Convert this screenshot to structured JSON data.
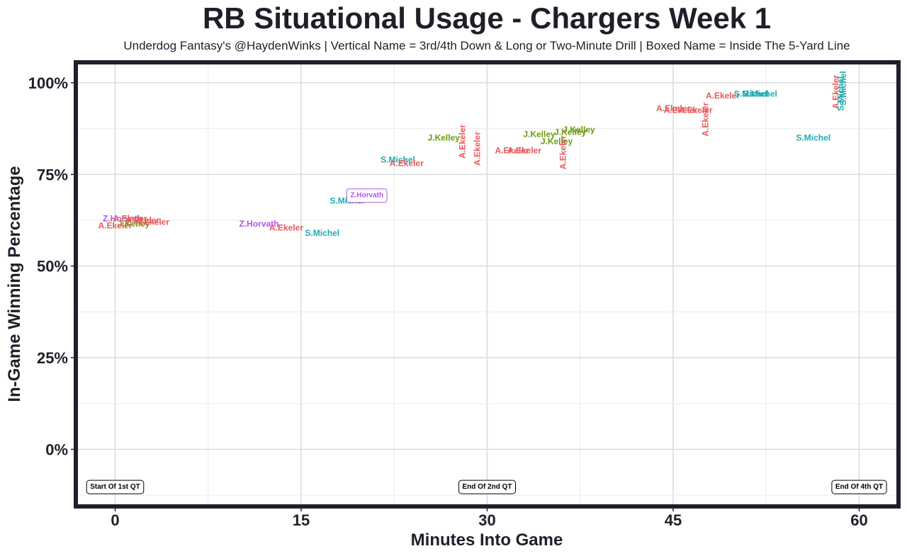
{
  "chart_data": {
    "type": "scatter",
    "title": "RB Situational Usage - Chargers Week 1",
    "subtitle": "Underdog Fantasy's @HaydenWinks | Vertical Name = 3rd/4th Down & Long or Two-Minute Drill | Boxed Name = Inside The 5-Yard Line",
    "xlabel": "Minutes Into Game",
    "ylabel": "In-Game Winning Percentage",
    "xlim": [
      -3,
      63
    ],
    "ylim": [
      -15,
      105
    ],
    "x_ticks": [
      0,
      15,
      30,
      45,
      60
    ],
    "x_tick_labels": [
      "0",
      "15",
      "30",
      "45",
      "60"
    ],
    "y_ticks": [
      0,
      25,
      50,
      75,
      100
    ],
    "y_tick_labels": [
      "0%",
      "25%",
      "50%",
      "75%",
      "100%"
    ],
    "grid": true,
    "colors": {
      "A.Ekeler": "#e8595a",
      "J.Kelley": "#6a9a0e",
      "S.Michel": "#1aabb0",
      "Z.Horvath": "#b157e8"
    },
    "annotations": [
      {
        "text": "Start Of 1st QT",
        "x": 0,
        "y": -10
      },
      {
        "text": "End Of 2nd QT",
        "x": 30,
        "y": -10
      },
      {
        "text": "End Of 4th QT",
        "x": 60,
        "y": -10
      }
    ],
    "points": [
      {
        "name": "A.Ekeler",
        "x": 0.0,
        "y": 61.0,
        "vertical": false,
        "boxed": false
      },
      {
        "name": "Z.Horvath",
        "x": 0.6,
        "y": 63.0,
        "vertical": false,
        "boxed": false
      },
      {
        "name": "A.Ekeler",
        "x": 1.2,
        "y": 63.0,
        "vertical": false,
        "boxed": false
      },
      {
        "name": "A.Ekeler",
        "x": 2.2,
        "y": 62.5,
        "vertical": false,
        "boxed": false
      },
      {
        "name": "J.Kelley",
        "x": 1.5,
        "y": 61.5,
        "vertical": false,
        "boxed": false
      },
      {
        "name": "A.Ekeler",
        "x": 3.0,
        "y": 62.0,
        "vertical": false,
        "boxed": false
      },
      {
        "name": "Z.Horvath",
        "x": 11.6,
        "y": 61.5,
        "vertical": false,
        "boxed": false
      },
      {
        "name": "A.Ekeler",
        "x": 13.8,
        "y": 60.5,
        "vertical": false,
        "boxed": false
      },
      {
        "name": "S.Michel",
        "x": 16.7,
        "y": 59.0,
        "vertical": false,
        "boxed": false
      },
      {
        "name": "S.Michel",
        "x": 18.7,
        "y": 67.8,
        "vertical": false,
        "boxed": false
      },
      {
        "name": "Z.Horvath",
        "x": 20.3,
        "y": 69.5,
        "vertical": false,
        "boxed": true
      },
      {
        "name": "S.Michel",
        "x": 22.8,
        "y": 79.0,
        "vertical": false,
        "boxed": false
      },
      {
        "name": "A.Ekeler",
        "x": 23.5,
        "y": 78.0,
        "vertical": false,
        "boxed": false
      },
      {
        "name": "J.Kelley",
        "x": 26.5,
        "y": 85.0,
        "vertical": false,
        "boxed": false
      },
      {
        "name": "A.Ekeler",
        "x": 28.0,
        "y": 84.0,
        "vertical": true,
        "boxed": false
      },
      {
        "name": "A.Ekeler",
        "x": 29.2,
        "y": 82.0,
        "vertical": true,
        "boxed": false
      },
      {
        "name": "A.Ekeler",
        "x": 32.0,
        "y": 81.5,
        "vertical": false,
        "boxed": false
      },
      {
        "name": "A.Ekeler",
        "x": 33.0,
        "y": 81.5,
        "vertical": false,
        "boxed": false
      },
      {
        "name": "J.Kelley",
        "x": 34.2,
        "y": 86.0,
        "vertical": false,
        "boxed": false
      },
      {
        "name": "J.Kelley",
        "x": 35.6,
        "y": 84.0,
        "vertical": false,
        "boxed": false
      },
      {
        "name": "A.Ekeler",
        "x": 36.1,
        "y": 81.0,
        "vertical": true,
        "boxed": false
      },
      {
        "name": "J.Kelley",
        "x": 36.7,
        "y": 86.5,
        "vertical": false,
        "boxed": false
      },
      {
        "name": "J.Kelley",
        "x": 37.4,
        "y": 87.2,
        "vertical": false,
        "boxed": false
      },
      {
        "name": "A.Ekeler",
        "x": 45.0,
        "y": 93.0,
        "vertical": false,
        "boxed": false
      },
      {
        "name": "A.Ekeler",
        "x": 45.6,
        "y": 92.5,
        "vertical": false,
        "boxed": false
      },
      {
        "name": "A.Ekeler",
        "x": 46.8,
        "y": 92.5,
        "vertical": false,
        "boxed": false
      },
      {
        "name": "A.Ekeler",
        "x": 47.6,
        "y": 90.0,
        "vertical": true,
        "boxed": false
      },
      {
        "name": "A.Ekeler",
        "x": 49.0,
        "y": 96.5,
        "vertical": false,
        "boxed": false
      },
      {
        "name": "S.Michel",
        "x": 51.3,
        "y": 97.0,
        "vertical": false,
        "boxed": false
      },
      {
        "name": "S.Michel",
        "x": 52.0,
        "y": 97.0,
        "vertical": false,
        "boxed": false
      },
      {
        "name": "S.Michel",
        "x": 56.3,
        "y": 85.0,
        "vertical": false,
        "boxed": false
      },
      {
        "name": "A.Ekeler",
        "x": 58.1,
        "y": 97.5,
        "vertical": true,
        "boxed": false
      },
      {
        "name": "S.Michel",
        "x": 58.5,
        "y": 97.0,
        "vertical": true,
        "boxed": false
      },
      {
        "name": "S.Michel",
        "x": 58.7,
        "y": 98.5,
        "vertical": true,
        "boxed": false
      }
    ]
  }
}
